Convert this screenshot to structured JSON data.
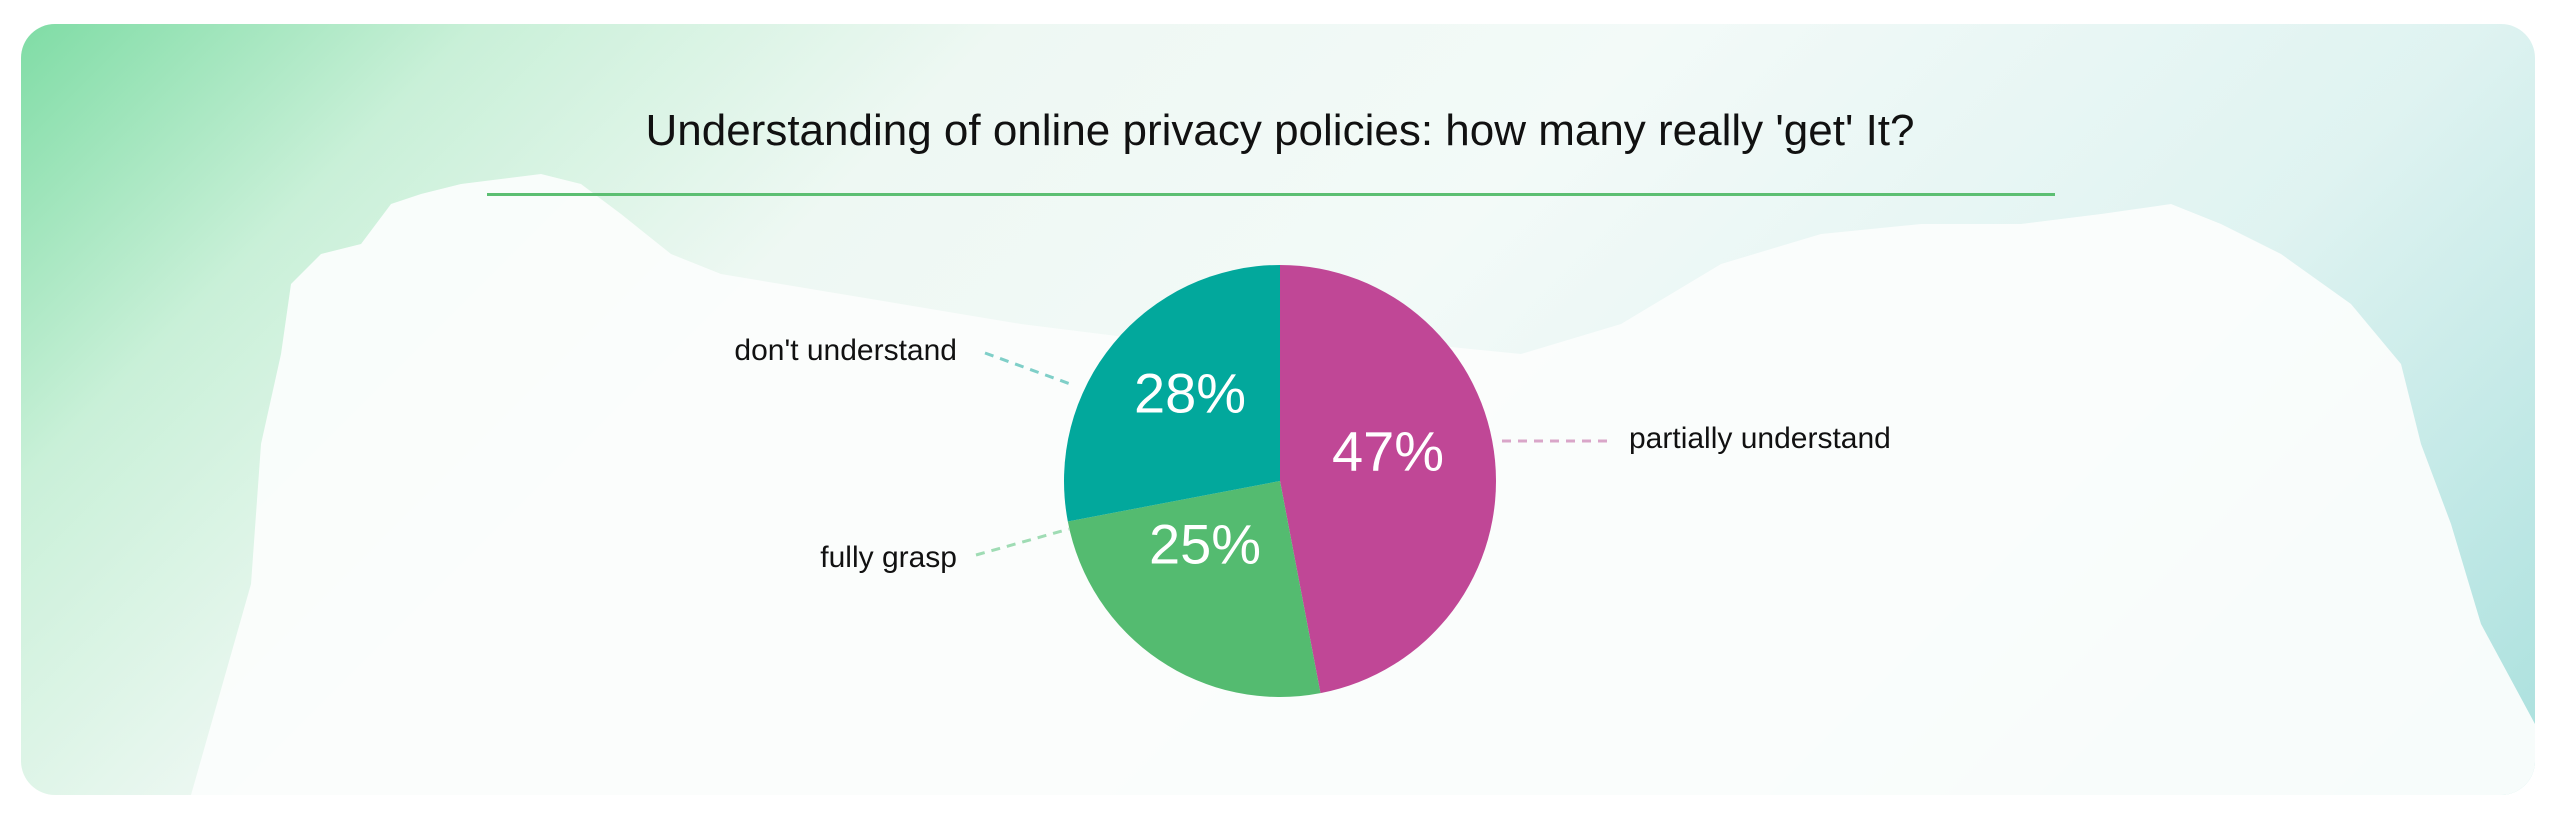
{
  "chart_data": {
    "type": "pie",
    "title": "Understanding of online privacy policies: how many really 'get' It?",
    "slices": [
      {
        "label": "partially understand",
        "value": 47,
        "display": "47%",
        "color": "#c04796"
      },
      {
        "label": "fully grasp",
        "value": 25,
        "display": "25%",
        "color": "#54bb70"
      },
      {
        "label": "don't understand",
        "value": 28,
        "display": "28%",
        "color": "#02a89c"
      }
    ],
    "start_angle": "12 o'clock, clockwise",
    "colors": {
      "title_rule": "#5cbf72",
      "text": "#111111"
    }
  }
}
